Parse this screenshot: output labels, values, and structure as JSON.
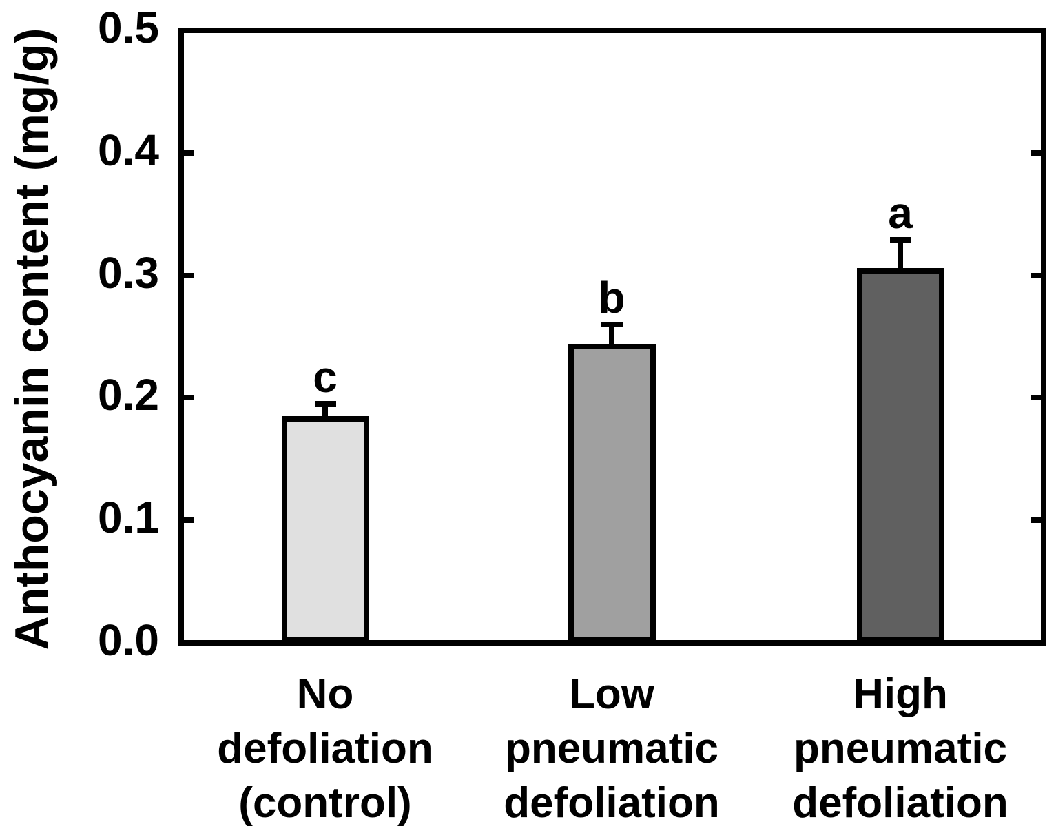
{
  "chart_data": {
    "type": "bar",
    "title": "",
    "ylabel": "Anthocyanin content (mg/g)",
    "xlabel": "",
    "ylim": [
      0.0,
      0.5
    ],
    "ytick_labels": [
      "0.0",
      "0.1",
      "0.2",
      "0.3",
      "0.4",
      "0.5"
    ],
    "ytick_values": [
      0.0,
      0.1,
      0.2,
      0.3,
      0.4,
      0.5
    ],
    "inner_tick_values": [
      0.1,
      0.2,
      0.3,
      0.4
    ],
    "categories": [
      [
        "No",
        "defoliation",
        "(control)"
      ],
      [
        "Low",
        "pneumatic",
        "defoliation"
      ],
      [
        "High",
        "pneumatic",
        "defoliation"
      ]
    ],
    "values": [
      0.185,
      0.244,
      0.306
    ],
    "errors": [
      0.01,
      0.016,
      0.023
    ],
    "error_bar_direction": "upper-only",
    "sig_letters": [
      "c",
      "b",
      "a"
    ],
    "bar_colors": [
      "#e0e0e0",
      "#a0a0a0",
      "#606060"
    ],
    "outline_color": "#000000",
    "background_color": "#ffffff",
    "grid": false,
    "legend": null
  }
}
